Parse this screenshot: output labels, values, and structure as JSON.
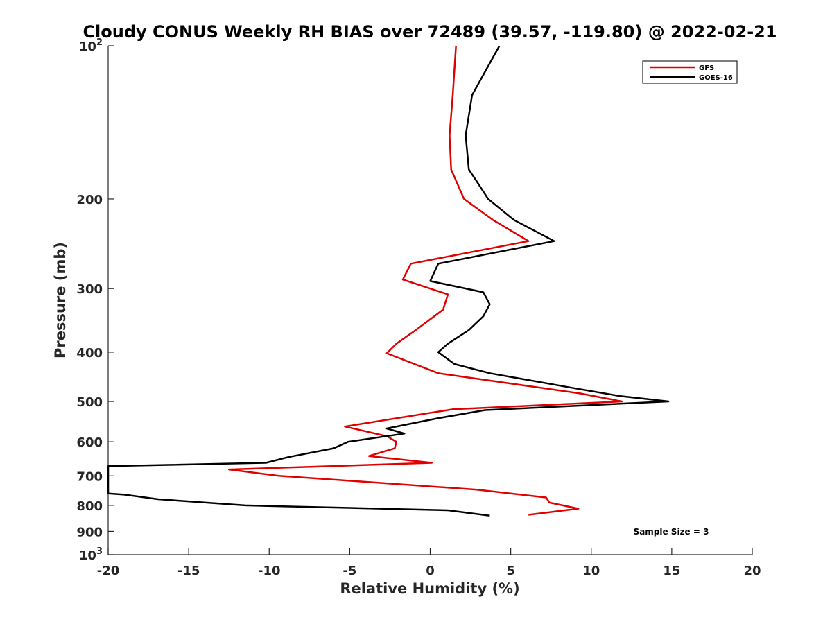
{
  "chart_data": {
    "type": "line",
    "title": "Cloudy CONUS Weekly RH BIAS over 72489 (39.57, -119.80) @ 2022-02-21",
    "xlabel": "Relative Humidity (%)",
    "ylabel": "Pressure (mb)",
    "xlim": [
      -20,
      20
    ],
    "ylim": [
      100,
      1000
    ],
    "y_scale": "log",
    "y_reversed": true,
    "grid": false,
    "legend_position": "top-right",
    "x_ticks": [
      {
        "value": -20,
        "label": "-20"
      },
      {
        "value": -15,
        "label": "-15"
      },
      {
        "value": -10,
        "label": "-10"
      },
      {
        "value": -5,
        "label": "-5"
      },
      {
        "value": 0,
        "label": "0"
      },
      {
        "value": 5,
        "label": "5"
      },
      {
        "value": 10,
        "label": "10"
      },
      {
        "value": 15,
        "label": "15"
      },
      {
        "value": 20,
        "label": "20"
      }
    ],
    "y_ticks": [
      {
        "value": 100,
        "base": "10",
        "exp": "2"
      },
      {
        "value": 200,
        "label": "200"
      },
      {
        "value": 300,
        "label": "300"
      },
      {
        "value": 400,
        "label": "400"
      },
      {
        "value": 500,
        "label": "500"
      },
      {
        "value": 600,
        "label": "600"
      },
      {
        "value": 700,
        "label": "700"
      },
      {
        "value": 800,
        "label": "800"
      },
      {
        "value": 900,
        "label": "900"
      },
      {
        "value": 1000,
        "base": "10",
        "exp": "3"
      }
    ],
    "series": [
      {
        "name": "GFS",
        "color": "#e00000",
        "points": [
          {
            "x": 1.6,
            "y": 100
          },
          {
            "x": 1.4,
            "y": 125
          },
          {
            "x": 1.2,
            "y": 150
          },
          {
            "x": 1.3,
            "y": 175
          },
          {
            "x": 2.1,
            "y": 200
          },
          {
            "x": 3.9,
            "y": 220
          },
          {
            "x": 6.1,
            "y": 242
          },
          {
            "x": -1.2,
            "y": 268
          },
          {
            "x": -1.7,
            "y": 288
          },
          {
            "x": 1.1,
            "y": 308
          },
          {
            "x": 0.8,
            "y": 330
          },
          {
            "x": -0.9,
            "y": 362
          },
          {
            "x": -2.1,
            "y": 385
          },
          {
            "x": -2.7,
            "y": 402
          },
          {
            "x": 0.5,
            "y": 440
          },
          {
            "x": 9.3,
            "y": 482
          },
          {
            "x": 11.9,
            "y": 500
          },
          {
            "x": 1.4,
            "y": 518
          },
          {
            "x": -5.3,
            "y": 560
          },
          {
            "x": -2.7,
            "y": 585
          },
          {
            "x": -2.1,
            "y": 600
          },
          {
            "x": -2.2,
            "y": 618
          },
          {
            "x": -3.8,
            "y": 640
          },
          {
            "x": 0.1,
            "y": 660
          },
          {
            "x": -12.5,
            "y": 680
          },
          {
            "x": -9.4,
            "y": 700
          },
          {
            "x": 2.9,
            "y": 745
          },
          {
            "x": 7.2,
            "y": 772
          },
          {
            "x": 7.4,
            "y": 790
          },
          {
            "x": 9.2,
            "y": 812
          },
          {
            "x": 6.1,
            "y": 835
          }
        ]
      },
      {
        "name": "GOES-16",
        "color": "#000000",
        "points": [
          {
            "x": 4.3,
            "y": 100
          },
          {
            "x": 2.6,
            "y": 125
          },
          {
            "x": 2.2,
            "y": 150
          },
          {
            "x": 2.4,
            "y": 175
          },
          {
            "x": 2.9,
            "y": 185
          },
          {
            "x": 3.6,
            "y": 200
          },
          {
            "x": 5.2,
            "y": 220
          },
          {
            "x": 7.7,
            "y": 242
          },
          {
            "x": 0.5,
            "y": 268
          },
          {
            "x": 0,
            "y": 290
          },
          {
            "x": 3.3,
            "y": 305
          },
          {
            "x": 3.7,
            "y": 322
          },
          {
            "x": 3.3,
            "y": 340
          },
          {
            "x": 2.4,
            "y": 362
          },
          {
            "x": 1.1,
            "y": 385
          },
          {
            "x": 0.5,
            "y": 400
          },
          {
            "x": 1.5,
            "y": 422
          },
          {
            "x": 3.7,
            "y": 440
          },
          {
            "x": 8.8,
            "y": 470
          },
          {
            "x": 11.8,
            "y": 488
          },
          {
            "x": 14.8,
            "y": 500
          },
          {
            "x": 3.4,
            "y": 520
          },
          {
            "x": 0.4,
            "y": 540
          },
          {
            "x": -2.7,
            "y": 565
          },
          {
            "x": -1.6,
            "y": 578
          },
          {
            "x": -5.1,
            "y": 600
          },
          {
            "x": -6,
            "y": 618
          },
          {
            "x": -8.8,
            "y": 643
          },
          {
            "x": -10.2,
            "y": 660
          },
          {
            "x": -20,
            "y": 670
          },
          {
            "x": -20,
            "y": 758
          },
          {
            "x": -19,
            "y": 762
          },
          {
            "x": -16.9,
            "y": 778
          },
          {
            "x": -11.5,
            "y": 800
          },
          {
            "x": 1.1,
            "y": 818
          },
          {
            "x": 3.7,
            "y": 838
          }
        ]
      }
    ],
    "annotations": [
      {
        "text": "Sample Size = 3",
        "x": 13.9,
        "y": 900
      }
    ]
  }
}
